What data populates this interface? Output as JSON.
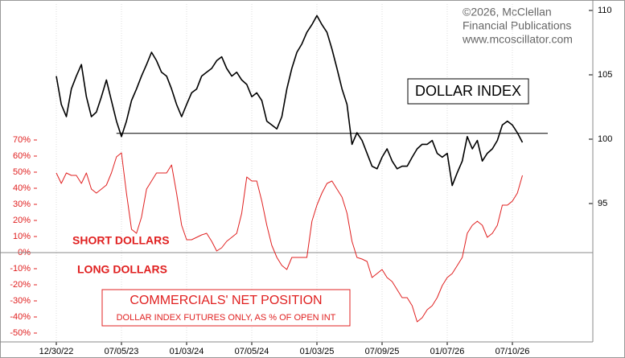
{
  "chart_data": {
    "type": "line",
    "categories": [
      "12/30/22",
      null,
      null,
      null,
      null,
      null,
      null,
      null,
      null,
      null,
      null,
      null,
      null,
      "07/05/23",
      null,
      null,
      null,
      null,
      null,
      null,
      null,
      null,
      null,
      null,
      null,
      null,
      "01/03/24",
      null,
      null,
      null,
      null,
      null,
      null,
      null,
      null,
      null,
      null,
      null,
      null,
      "07/05/24",
      null,
      null,
      null,
      null,
      null,
      null,
      null,
      null,
      null,
      null,
      null,
      null,
      "01/03/25",
      null,
      null,
      null,
      null,
      null,
      null,
      null,
      null,
      null,
      null,
      null,
      null,
      "07/09/25",
      null,
      null,
      null,
      null,
      null,
      null,
      null,
      null,
      null,
      null,
      null,
      null,
      "01/07/26",
      null,
      null,
      null,
      null,
      null,
      null,
      null,
      null,
      null,
      null,
      null,
      null,
      "07/10/26",
      null,
      null
    ],
    "ylim": [
      -55.5,
      154.5
    ],
    "yticks": [
      {
        "value": 70,
        "label": "70%"
      },
      {
        "value": 60,
        "label": "60%"
      },
      {
        "value": 50,
        "label": "50%"
      },
      {
        "value": 40,
        "label": "40%"
      },
      {
        "value": 30,
        "label": "30%"
      },
      {
        "value": 20,
        "label": "20%"
      },
      {
        "value": 10,
        "label": "10%"
      },
      {
        "value": 0,
        "label": "0%"
      },
      {
        "value": -10,
        "label": "-10%"
      },
      {
        "value": -20,
        "label": "-20%"
      },
      {
        "value": -30,
        "label": "-30%"
      },
      {
        "value": -40,
        "label": "-40%"
      },
      {
        "value": -50,
        "label": "-50%"
      }
    ],
    "y2lim": [
      84.25,
      110.5
    ],
    "y2ticks": [
      95,
      100,
      105,
      110
    ],
    "zero_line": true,
    "reference_line": 100.45,
    "series": [
      {
        "name": "COMMERCIALS' NET POSITION",
        "color": "#e02020",
        "values": [
          49.5,
          43,
          49.5,
          48,
          48,
          43,
          49.5,
          39.5,
          37,
          39.5,
          42,
          49.5,
          59.5,
          62,
          37,
          14.5,
          12,
          22,
          39.5,
          44.5,
          49.5,
          49.5,
          49.5,
          54.5,
          37,
          17,
          8,
          8,
          9.5,
          11,
          12,
          7,
          1,
          3,
          7,
          9.5,
          12,
          24.5,
          47,
          44.5,
          44.5,
          32,
          17,
          4.5,
          -3,
          -8,
          -10.5,
          -3,
          -3,
          -3,
          -3,
          19.5,
          29.5,
          37,
          43,
          44.5,
          39.5,
          34.5,
          24.5,
          7,
          -3,
          -4,
          -5.5,
          -15.5,
          -13,
          -10.5,
          -15.5,
          -18,
          -23,
          -28,
          -28,
          -33,
          -43,
          -40.5,
          -35.5,
          -33,
          -28,
          -20.5,
          -15.5,
          -13,
          -8,
          -3,
          12,
          17,
          19.5,
          17,
          9.5,
          12,
          17,
          29.5,
          29.5,
          32,
          37,
          48
        ]
      },
      {
        "name": "DOLLAR INDEX",
        "color": "#000000",
        "axis": "y2",
        "values": [
          104.9,
          102.7,
          101.75,
          103.9,
          104.9,
          105.8,
          103.3,
          101.75,
          102.1,
          103.3,
          104.6,
          103,
          101.4,
          100.2,
          101.4,
          103,
          103.9,
          104.9,
          105.8,
          106.75,
          106.1,
          105.2,
          104.9,
          103.9,
          102.7,
          101.75,
          102.7,
          103.6,
          103.9,
          104.9,
          105.2,
          105.5,
          106.1,
          106.4,
          105.5,
          104.9,
          105.2,
          104.6,
          104.25,
          103.3,
          103.6,
          103,
          101.4,
          101.1,
          100.8,
          101.75,
          103.9,
          105.5,
          106.75,
          107.4,
          108.3,
          108.9,
          109.6,
          108.9,
          108.3,
          107,
          105.5,
          103.9,
          102.7,
          99.6,
          100.5,
          99.9,
          98.9,
          97.9,
          97.7,
          98.6,
          99.25,
          98.3,
          97.7,
          97.9,
          97.9,
          98.6,
          99.25,
          99.6,
          99.6,
          99.9,
          98.9,
          98.6,
          98.9,
          96.4,
          97.4,
          98.3,
          100.2,
          99.25,
          99.9,
          98.3,
          98.9,
          99.25,
          99.9,
          101.1,
          101.4,
          101.1,
          100.5,
          99.75
        ]
      }
    ],
    "annotations": {
      "copyright": [
        "©2026, McClellan",
        "Financial Publications",
        "www.mcoscillator.com"
      ],
      "short_label": "SHORT DOLLARS",
      "long_label": "LONG DOLLARS",
      "net_position_note": "DOLLAR INDEX FUTURES ONLY, AS % OF OPEN INT"
    }
  }
}
